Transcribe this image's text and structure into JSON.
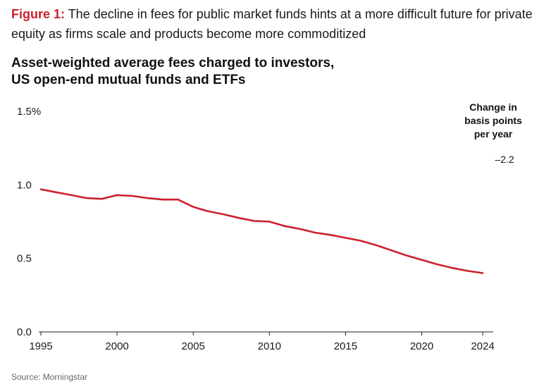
{
  "caption": {
    "label": "Figure 1:",
    "text": " The decline in fees for public market funds hints at a more difficult future for private equity as firms scale and products become more commoditized"
  },
  "title_line1": "Asset-weighted average fees charged to investors,",
  "title_line2": "US open-end mutual funds and ETFs",
  "side": {
    "header_line1": "Change in",
    "header_line2": "basis points",
    "header_line3": "per year",
    "value": "–2.2"
  },
  "source": "Source: Morningstar",
  "colors": {
    "series": "#cc1f2d",
    "caption_label": "#cc1f2d"
  },
  "chart_data": {
    "type": "line",
    "title": "Asset-weighted average fees charged to investors, US open-end mutual funds and ETFs",
    "xlabel": "",
    "ylabel": "",
    "xlim": [
      1995,
      2024
    ],
    "ylim": [
      0,
      1.5
    ],
    "x_ticks": [
      1995,
      2000,
      2005,
      2010,
      2015,
      2020,
      2024
    ],
    "y_ticks": [
      {
        "value": 0,
        "label": "0.0"
      },
      {
        "value": 0.5,
        "label": "0.5"
      },
      {
        "value": 1.0,
        "label": "1.0"
      },
      {
        "value": 1.5,
        "label": "1.5%"
      }
    ],
    "grid": false,
    "series": [
      {
        "x": [
          1995,
          1996,
          1997,
          1998,
          1999,
          2000,
          2001,
          2002,
          2003,
          2004,
          2005,
          2006,
          2007,
          2008,
          2009,
          2010,
          2011,
          2012,
          2013,
          2014,
          2015,
          2016,
          2017,
          2018,
          2019,
          2020,
          2021,
          2022,
          2023,
          2024
        ],
        "values": [
          0.97,
          0.95,
          0.93,
          0.91,
          0.905,
          0.93,
          0.925,
          0.91,
          0.9,
          0.9,
          0.85,
          0.82,
          0.8,
          0.775,
          0.755,
          0.75,
          0.72,
          0.7,
          0.675,
          0.66,
          0.64,
          0.62,
          0.59,
          0.555,
          0.52,
          0.49,
          0.46,
          0.435,
          0.415,
          0.4
        ],
        "annotation": "–2.2"
      }
    ]
  }
}
